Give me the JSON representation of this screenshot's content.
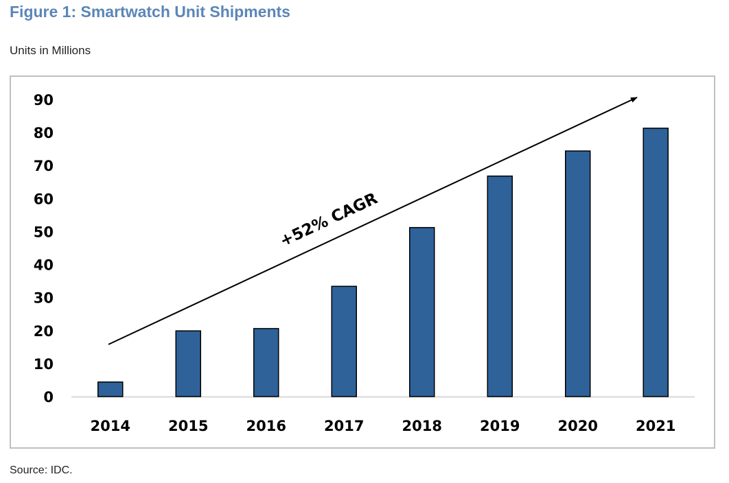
{
  "figure": {
    "title": "Figure 1: Smartwatch Unit Shipments",
    "subtitle": "Units in Millions",
    "source": "Source: IDC."
  },
  "chart_data": {
    "type": "bar",
    "title": "",
    "xlabel": "",
    "ylabel": "",
    "categories": [
      "2014",
      "2015",
      "2016",
      "2017",
      "2018",
      "2019",
      "2020",
      "2021"
    ],
    "values": [
      4.4,
      19.9,
      20.6,
      33.4,
      51.2,
      66.8,
      74.4,
      81.3
    ],
    "ylim": [
      0,
      90
    ],
    "yticks": [
      "0",
      "10",
      "20",
      "30",
      "40",
      "50",
      "60",
      "70",
      "80",
      "90"
    ],
    "grid": false,
    "legend": "none",
    "colors": {
      "bar": "#2e6299",
      "bar_outline": "#000000",
      "axis": "#d9d9d9"
    },
    "annotations": [
      {
        "text": "+52% CAGR",
        "type": "trend-arrow"
      }
    ]
  }
}
